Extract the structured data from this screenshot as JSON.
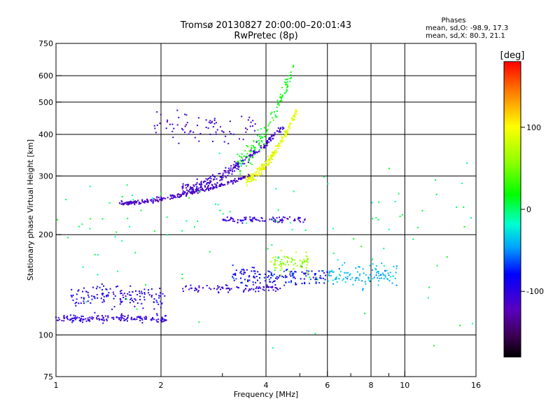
{
  "header": {
    "title": "Tromsø 20130827 20:00:00–20:01:43",
    "subtitle": "RwPretec (8p)"
  },
  "phases_box": {
    "heading": "Phases",
    "line_o": "mean, sd,O:  -98.9, 17.3",
    "line_x": "mean, sd,X:  80.3, 21.1"
  },
  "chart_data": {
    "type": "scatter",
    "xlabel": "Frequency [MHz]",
    "ylabel": "Stationary phase Virtual Height [km]",
    "x_scale": "log",
    "y_scale": "log",
    "xlim": [
      1,
      16
    ],
    "ylim": [
      75,
      750
    ],
    "grid": true,
    "x_ticks": [
      1,
      2,
      4,
      6,
      8,
      10,
      16
    ],
    "x_tick_labels": [
      "1",
      "2",
      "4",
      "6",
      "8",
      "10",
      "16"
    ],
    "x_minor_ticks": [
      3,
      5,
      7,
      9
    ],
    "y_ticks": [
      75,
      100,
      200,
      300,
      400,
      500,
      600,
      750
    ],
    "y_tick_labels": [
      "75",
      "100",
      "200",
      "300",
      "400",
      "500",
      "600",
      "750"
    ],
    "colorbar": {
      "label": "[deg]",
      "range": [
        -180,
        180
      ],
      "ticks": [
        100,
        0,
        -100
      ],
      "tick_labels": [
        "100",
        "0",
        "-100"
      ]
    },
    "traces": [
      {
        "x_range": [
          1.0,
          2.1
        ],
        "y_center": 112,
        "y_spread": 4,
        "phase": -105,
        "count": 160
      },
      {
        "x_range": [
          1.1,
          2.05
        ],
        "y_center": 130,
        "y_spread": 14,
        "phase": -95,
        "count": 140
      },
      {
        "x_range": [
          2.3,
          4.4
        ],
        "y_center": 138,
        "y_spread": 5,
        "phase": -105,
        "count": 90
      },
      {
        "x_range": [
          3.2,
          6.0
        ],
        "y_center": 150,
        "y_spread": 14,
        "phase": -80,
        "count": 150
      },
      {
        "x_range": [
          4.1,
          5.3
        ],
        "y_center": 165,
        "y_spread": 15,
        "phase": 60,
        "count": 70
      },
      {
        "x_range": [
          6.0,
          9.5
        ],
        "y_center": 150,
        "y_spread": 18,
        "phase": -40,
        "count": 110
      },
      {
        "x_range": [
          3.0,
          5.2
        ],
        "y_center": 222,
        "y_spread": 6,
        "phase": -105,
        "count": 90
      },
      {
        "x_range": [
          1.5,
          3.6
        ],
        "y_start": 248,
        "y_end": 300,
        "y_spread": 6,
        "phase": -115,
        "count": 260
      },
      {
        "x_range": [
          2.3,
          4.5
        ],
        "y_start": 275,
        "y_end": 420,
        "y_spread": 15,
        "phase": -110,
        "count": 220
      },
      {
        "x_range": [
          3.5,
          4.9
        ],
        "y_start": 292,
        "y_end": 470,
        "y_spread": 14,
        "phase": 90,
        "count": 220
      },
      {
        "x_range": [
          3.3,
          4.8
        ],
        "y_start": 330,
        "y_end": 640,
        "y_spread": 40,
        "phase": 20,
        "count": 130
      },
      {
        "x_range": [
          1.9,
          3.8
        ],
        "y_center": 420,
        "y_spread": 60,
        "phase": -110,
        "count": 80
      },
      {
        "x_range": [
          1.0,
          16.0
        ],
        "y_center": 200,
        "y_spread": 180,
        "phase": 0,
        "count": 110
      }
    ]
  }
}
